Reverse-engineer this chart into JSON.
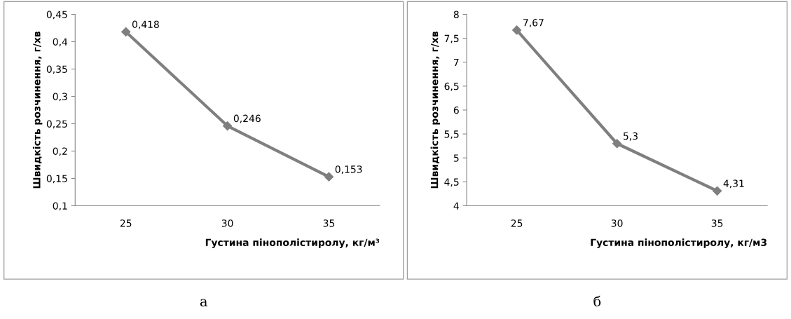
{
  "chart_data": [
    {
      "type": "line",
      "categories": [
        "25",
        "30",
        "35"
      ],
      "xlabel": "Густина пінополістиролу, кг/м³",
      "ylabel": "Швидкість розчинення, г/хв",
      "series": [
        {
          "color": "#7f7f7f",
          "values": [
            0.418,
            0.246,
            0.153
          ],
          "value_labels": [
            "0,418",
            "0,246",
            "0,153"
          ]
        }
      ],
      "ylim": [
        0.1,
        0.45
      ],
      "yticks": [
        {
          "value": 0.1,
          "label": "0,1"
        },
        {
          "value": 0.15,
          "label": "0,15"
        },
        {
          "value": 0.2,
          "label": "0,2"
        },
        {
          "value": 0.25,
          "label": "0,25"
        },
        {
          "value": 0.3,
          "label": "0,3"
        },
        {
          "value": 0.35,
          "label": "0,35"
        },
        {
          "value": 0.4,
          "label": "0,4"
        },
        {
          "value": 0.45,
          "label": "0,45"
        }
      ],
      "marker": "diamond",
      "grid": false,
      "annotations": [
        "а"
      ]
    },
    {
      "type": "line",
      "categories": [
        "25",
        "30",
        "35"
      ],
      "xlabel": "Густина пінополістиролу, кг/м3",
      "ylabel": "Швидкість розчинення, г/хв",
      "series": [
        {
          "color": "#7f7f7f",
          "values": [
            7.67,
            5.3,
            4.31
          ],
          "value_labels": [
            "7,67",
            "5,3",
            "4,31"
          ]
        }
      ],
      "ylim": [
        4,
        8
      ],
      "yticks": [
        4,
        {
          "value": 4.5,
          "label": "4,5"
        },
        5,
        {
          "value": 5.5,
          "label": "5,5"
        },
        6,
        {
          "value": 6.5,
          "label": "6,5"
        },
        7,
        {
          "value": 7.5,
          "label": "7,5"
        },
        8
      ],
      "marker": "diamond",
      "grid": false,
      "annotations": [
        "б"
      ]
    }
  ]
}
